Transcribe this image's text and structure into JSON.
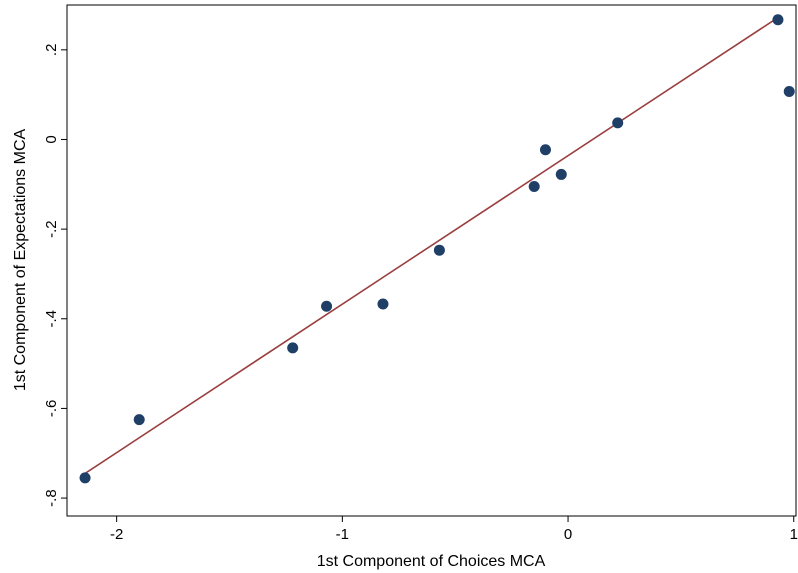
{
  "chart_data": {
    "type": "scatter",
    "xlabel": "1st Component of Choices MCA",
    "ylabel": "1st Component of Expectations MCA",
    "xlim": [
      -2.22,
      1.01
    ],
    "ylim": [
      -0.84,
      0.3
    ],
    "xticks": [
      {
        "value": -2,
        "label": "-2"
      },
      {
        "value": -1,
        "label": "-1"
      },
      {
        "value": 0,
        "label": "0"
      },
      {
        "value": 1,
        "label": "1"
      }
    ],
    "yticks": [
      {
        "value": -0.8,
        "label": "-.8"
      },
      {
        "value": -0.6,
        "label": "-.6"
      },
      {
        "value": -0.4,
        "label": "-.4"
      },
      {
        "value": -0.2,
        "label": "-.2"
      },
      {
        "value": 0,
        "label": "0"
      },
      {
        "value": 0.2,
        "label": ".2"
      }
    ],
    "series": [
      {
        "type": "scatter",
        "color": "#1f3f66",
        "points": [
          {
            "x": -2.14,
            "y": -0.755
          },
          {
            "x": -1.9,
            "y": -0.625
          },
          {
            "x": -1.22,
            "y": -0.465
          },
          {
            "x": -1.07,
            "y": -0.372
          },
          {
            "x": -0.82,
            "y": -0.367
          },
          {
            "x": -0.57,
            "y": -0.247
          },
          {
            "x": -0.15,
            "y": -0.105
          },
          {
            "x": -0.1,
            "y": -0.023
          },
          {
            "x": -0.03,
            "y": -0.078
          },
          {
            "x": 0.22,
            "y": 0.037
          },
          {
            "x": 0.93,
            "y": 0.267
          },
          {
            "x": 0.98,
            "y": 0.107
          }
        ]
      },
      {
        "type": "line",
        "color": "#9a3f3f",
        "points": [
          {
            "x": -2.14,
            "y": -0.745
          },
          {
            "x": 0.93,
            "y": 0.272
          }
        ]
      }
    ],
    "grid": false,
    "legend": "none"
  }
}
